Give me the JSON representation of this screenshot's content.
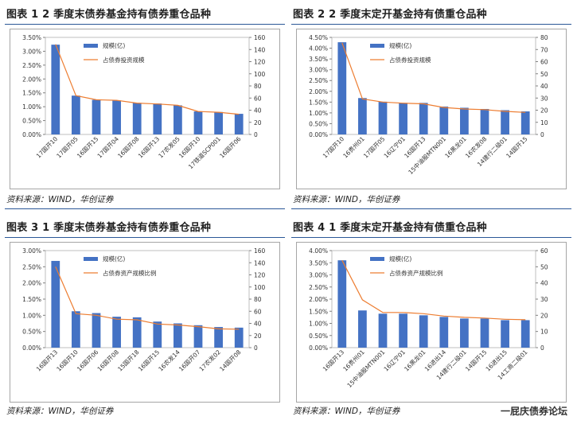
{
  "colors": {
    "bar": "#4472c4",
    "line": "#ed7d31",
    "title_rule": "#2b5797"
  },
  "watermark": "一屁庆债券论坛",
  "panels": [
    {
      "title": "图表 1 2 季度末债券基金持有债券重仓品种",
      "source": "资料来源：WIND，华创证券",
      "legend_bar": "规模(亿)",
      "legend_line": "占债券投资规模",
      "chart_data": {
        "type": "bar",
        "categories": [
          "17国开10",
          "17国开05",
          "16国开15",
          "17国开04",
          "16国开08",
          "16国开13",
          "17农发05",
          "16国开10",
          "17铁道SCP001",
          "16国开06"
        ],
        "series": [
          {
            "name": "规模(亿)",
            "axis": "right",
            "values": [
              148,
              64,
              57,
              56,
              52,
              51,
              48,
              38,
              37,
              34
            ]
          },
          {
            "name": "占债券投资规模",
            "axis": "left",
            "values": [
              3.25,
              1.4,
              1.25,
              1.23,
              1.13,
              1.1,
              1.05,
              0.83,
              0.8,
              0.73
            ]
          }
        ],
        "left_axis": {
          "min": 0,
          "max": 3.5,
          "step": 0.5,
          "format": "pct2"
        },
        "right_axis": {
          "min": 0,
          "max": 160,
          "step": 20
        }
      }
    },
    {
      "title": "图表 2 2 季度末定开基金持有债重仓品种",
      "source": "资料来源：WIND，华创证券",
      "legend_bar": "规模(亿)",
      "legend_line": "占债券投资规模",
      "chart_data": {
        "type": "bar",
        "categories": [
          "17国开10",
          "16贵州01",
          "17国开05",
          "16辽宁01",
          "16国开13",
          "15中油股MTN001",
          "16黑龙01",
          "16农发08",
          "14建行二级01",
          "14国开15"
        ],
        "series": [
          {
            "name": "规模(亿)",
            "axis": "right",
            "values": [
              76,
              30,
              27,
              26,
              26,
              23,
              22,
              21,
              20,
              19
            ]
          },
          {
            "name": "占债券投资规模",
            "axis": "left",
            "values": [
              4.25,
              1.65,
              1.5,
              1.45,
              1.42,
              1.25,
              1.18,
              1.15,
              1.07,
              1.02
            ]
          }
        ],
        "left_axis": {
          "min": 0,
          "max": 4.5,
          "step": 0.5,
          "format": "pct2"
        },
        "right_axis": {
          "min": 0,
          "max": 80,
          "step": 10
        }
      }
    },
    {
      "title": "图表 3 1 季度末债券基金持有债券重仓品种",
      "source": "资料来源：WIND，华创证券",
      "legend_bar": "规模(亿)",
      "legend_line": "占债券资产规模比例",
      "chart_data": {
        "type": "bar",
        "categories": [
          "16国开13",
          "16国开10",
          "16国开06",
          "16国开08",
          "15国开18",
          "16国开15",
          "16农发14",
          "16国开07",
          "17农发02",
          "14国开08"
        ],
        "series": [
          {
            "name": "规模(亿)",
            "axis": "right",
            "values": [
              143,
              60,
              57,
              51,
              50,
              43,
              40,
              37,
              34,
              33
            ]
          },
          {
            "name": "占债券资产规模比例",
            "axis": "left",
            "values": [
              2.5,
              1.05,
              1.0,
              0.88,
              0.86,
              0.73,
              0.7,
              0.65,
              0.58,
              0.57
            ]
          }
        ],
        "left_axis": {
          "min": 0,
          "max": 3.0,
          "step": 0.5,
          "format": "pct2"
        },
        "right_axis": {
          "min": 0,
          "max": 160,
          "step": 20
        }
      }
    },
    {
      "title": "图表 4 1 季度末定开基金持有债重仓品种",
      "source": "资料来源：WIND，华创证券",
      "legend_bar": "规模(亿)",
      "legend_line": "占债券资产规模比例",
      "chart_data": {
        "type": "bar",
        "categories": [
          "16国开13",
          "16贵州01",
          "15中油股MTN001",
          "16辽宁01",
          "16黑龙01",
          "16进出14",
          "14建行二级01",
          "14国开15",
          "16进出15",
          "14工商二级01"
        ],
        "series": [
          {
            "name": "规模(亿)",
            "axis": "right",
            "values": [
              54,
              23,
              21,
              21,
              20,
              19,
              18,
              18,
              17,
              17
            ]
          },
          {
            "name": "占债券资产规模比例",
            "axis": "left",
            "values": [
              3.6,
              1.97,
              1.45,
              1.45,
              1.4,
              1.3,
              1.25,
              1.22,
              1.17,
              1.15
            ]
          }
        ],
        "left_axis": {
          "min": 0,
          "max": 4.0,
          "step": 0.5,
          "format": "pct2"
        },
        "right_axis": {
          "min": 0,
          "max": 60,
          "step": 10
        }
      }
    }
  ]
}
